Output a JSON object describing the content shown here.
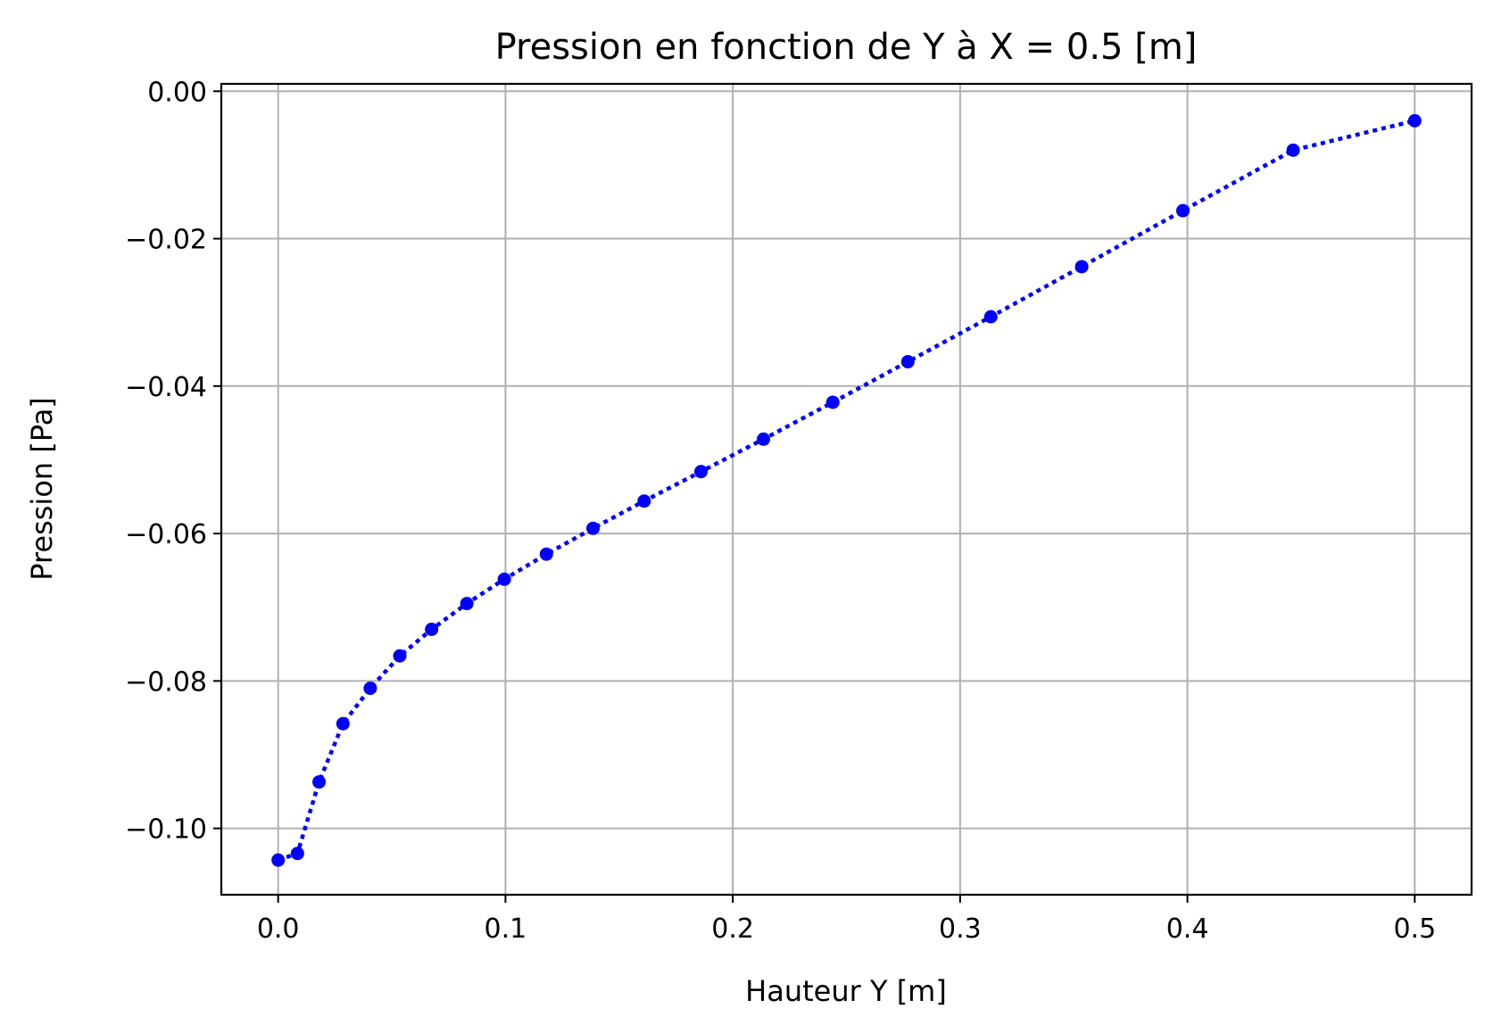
{
  "chart_data": {
    "type": "line",
    "title": "Pression en fonction de Y à X = 0.5 [m]",
    "xlabel": "Hauteur Y [m]",
    "ylabel": "Pression [Pa]",
    "xlim": [
      -0.025,
      0.525
    ],
    "ylim": [
      -0.109,
      0.001
    ],
    "xticks": [
      0.0,
      0.1,
      0.2,
      0.3,
      0.4,
      0.5
    ],
    "xtick_labels": [
      "0.0",
      "0.1",
      "0.2",
      "0.3",
      "0.4",
      "0.5"
    ],
    "yticks": [
      0.0,
      -0.02,
      -0.04,
      -0.06,
      -0.08,
      -0.1
    ],
    "ytick_labels": [
      "0.00",
      "−0.02",
      "−0.04",
      "−0.06",
      "−0.08",
      "−0.10"
    ],
    "grid": true,
    "line_style": "dotted",
    "marker": "circle",
    "color": "#0000ff",
    "grid_color": "#b0b0b0",
    "series": [
      {
        "x": [
          0.0,
          0.0085,
          0.018,
          0.0285,
          0.0405,
          0.0535,
          0.0675,
          0.083,
          0.0995,
          0.118,
          0.1385,
          0.161,
          0.186,
          0.2135,
          0.244,
          0.277,
          0.3135,
          0.3535,
          0.398,
          0.4465,
          0.5
        ],
        "y": [
          -0.1043,
          -0.1034,
          -0.0937,
          -0.0858,
          -0.081,
          -0.0766,
          -0.073,
          -0.0695,
          -0.0662,
          -0.0628,
          -0.0593,
          -0.0556,
          -0.0516,
          -0.0472,
          -0.0422,
          -0.0367,
          -0.0306,
          -0.0238,
          -0.0162,
          -0.008,
          -0.004
        ]
      }
    ]
  }
}
